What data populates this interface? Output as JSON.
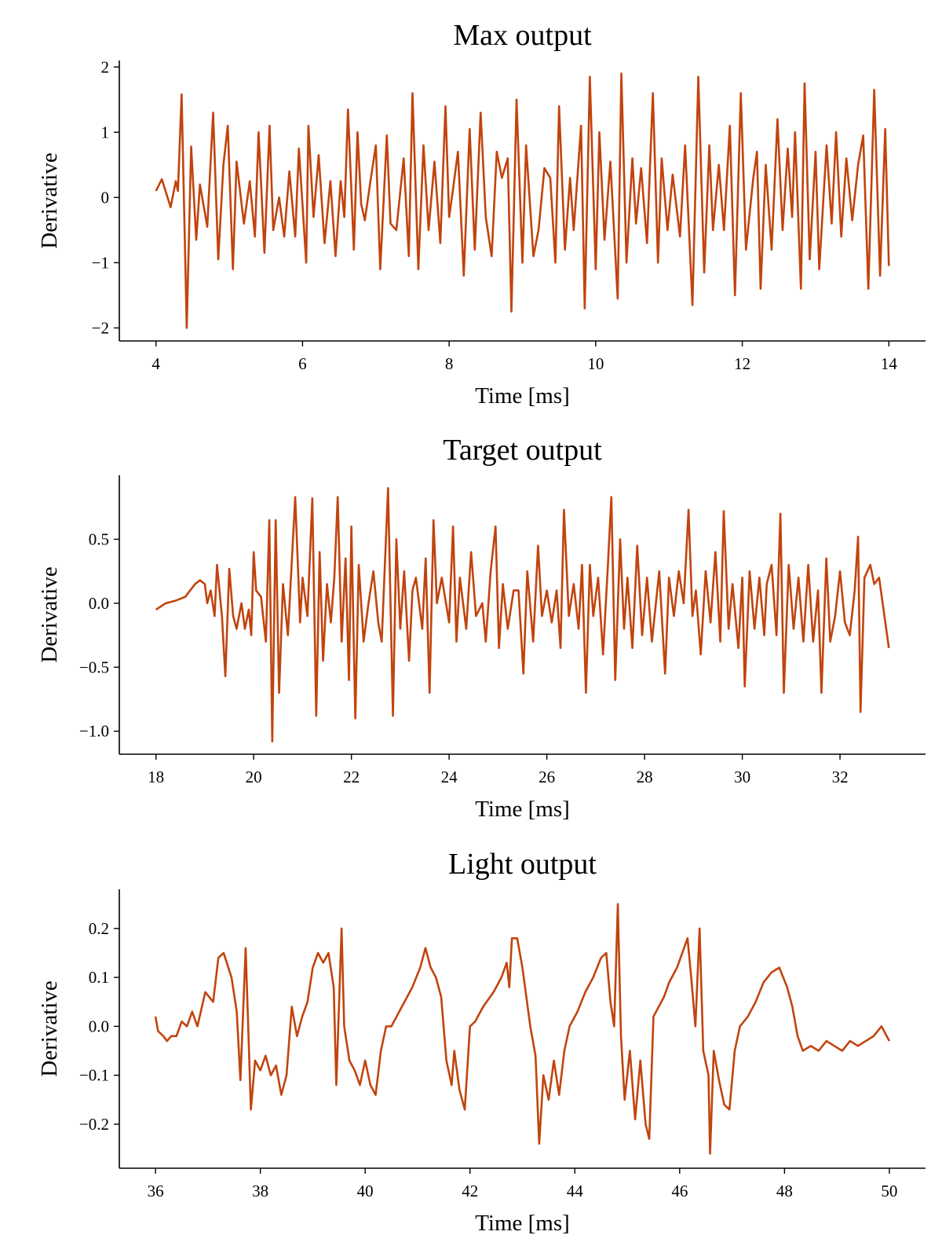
{
  "chart_data": [
    {
      "type": "line",
      "title": "Max output",
      "x_label": "Time [ms]",
      "y_label": "Derivative",
      "color": "#c1440e",
      "xlim": [
        3.5,
        14.5
      ],
      "ylim": [
        -2.2,
        2.1
      ],
      "xticks": [
        4,
        6,
        8,
        10,
        12,
        14
      ],
      "yticks": [
        {
          "value": -2,
          "label": "−2"
        },
        {
          "value": -1,
          "label": "−1"
        },
        0,
        1,
        2
      ],
      "x": [
        4.0,
        4.08,
        4.2,
        4.27,
        4.3,
        4.35,
        4.42,
        4.48,
        4.55,
        4.6,
        4.7,
        4.78,
        4.85,
        4.92,
        4.98,
        5.05,
        5.1,
        5.2,
        5.28,
        5.35,
        5.4,
        5.48,
        5.55,
        5.6,
        5.68,
        5.75,
        5.82,
        5.9,
        5.95,
        6.05,
        6.08,
        6.15,
        6.22,
        6.3,
        6.38,
        6.45,
        6.52,
        6.57,
        6.62,
        6.7,
        6.75,
        6.8,
        6.85,
        6.92,
        7.0,
        7.06,
        7.15,
        7.2,
        7.28,
        7.38,
        7.45,
        7.5,
        7.58,
        7.65,
        7.72,
        7.8,
        7.88,
        7.95,
        8.0,
        8.05,
        8.12,
        8.2,
        8.28,
        8.35,
        8.43,
        8.5,
        8.58,
        8.65,
        8.72,
        8.8,
        8.85,
        8.92,
        9.0,
        9.05,
        9.15,
        9.22,
        9.3,
        9.38,
        9.45,
        9.5,
        9.58,
        9.65,
        9.7,
        9.8,
        9.85,
        9.92,
        10.0,
        10.05,
        10.12,
        10.2,
        10.3,
        10.35,
        10.42,
        10.5,
        10.55,
        10.62,
        10.7,
        10.78,
        10.85,
        10.9,
        10.98,
        11.05,
        11.15,
        11.22,
        11.32,
        11.4,
        11.48,
        11.55,
        11.6,
        11.68,
        11.75,
        11.83,
        11.9,
        11.98,
        12.05,
        12.15,
        12.2,
        12.25,
        12.32,
        12.4,
        12.48,
        12.55,
        12.62,
        12.68,
        12.72,
        12.8,
        12.85,
        12.92,
        13.0,
        13.05,
        13.15,
        13.22,
        13.28,
        13.35,
        13.42,
        13.5,
        13.58,
        13.65,
        13.72,
        13.8,
        13.88,
        13.95,
        14.0
      ],
      "values": [
        0.1,
        0.28,
        -0.15,
        0.25,
        0.1,
        1.58,
        -2.0,
        0.78,
        -0.65,
        0.2,
        -0.45,
        1.3,
        -0.95,
        0.5,
        1.1,
        -1.1,
        0.55,
        -0.4,
        0.25,
        -0.6,
        1.0,
        -0.85,
        1.1,
        -0.5,
        0.0,
        -0.6,
        0.4,
        -0.6,
        0.75,
        -1.0,
        1.1,
        -0.3,
        0.65,
        -0.7,
        0.25,
        -0.9,
        0.25,
        -0.3,
        1.35,
        -0.8,
        1.0,
        -0.1,
        -0.35,
        0.2,
        0.8,
        -1.1,
        0.95,
        -0.4,
        -0.5,
        0.6,
        -0.9,
        1.6,
        -1.1,
        0.8,
        -0.5,
        0.55,
        -0.7,
        1.4,
        -0.3,
        0.1,
        0.7,
        -1.2,
        1.05,
        -0.8,
        1.3,
        -0.3,
        -0.9,
        0.7,
        0.3,
        0.6,
        -1.75,
        1.5,
        -1.0,
        0.8,
        -0.9,
        -0.5,
        0.45,
        0.3,
        -1.0,
        1.4,
        -0.8,
        0.3,
        -0.5,
        1.1,
        -1.7,
        1.85,
        -1.1,
        1.0,
        -0.65,
        0.55,
        -1.55,
        1.9,
        -1.0,
        0.6,
        -0.4,
        0.45,
        -0.7,
        1.6,
        -1.0,
        0.6,
        -0.5,
        0.35,
        -0.6,
        0.8,
        -1.65,
        1.85,
        -1.15,
        0.8,
        -0.5,
        0.5,
        -0.5,
        1.1,
        -1.5,
        1.6,
        -0.8,
        0.3,
        0.7,
        -1.4,
        0.5,
        -0.8,
        1.2,
        -0.5,
        0.75,
        -0.3,
        1.0,
        -1.4,
        1.75,
        -0.95,
        0.7,
        -1.1,
        0.8,
        -0.4,
        1.0,
        -0.6,
        0.6,
        -0.35,
        0.5,
        0.95,
        -1.4,
        1.65,
        -1.2,
        1.05,
        -1.05
      ]
    },
    {
      "type": "line",
      "title": "Target output",
      "x_label": "Time [ms]",
      "y_label": "Derivative",
      "color": "#c1440e",
      "xlim": [
        17.25,
        33.75
      ],
      "ylim": [
        -1.18,
        1.0
      ],
      "xticks": [
        18,
        20,
        22,
        24,
        26,
        28,
        30,
        32
      ],
      "yticks": [
        {
          "value": -1.0,
          "label": "−1.0"
        },
        {
          "value": -0.5,
          "label": "−0.5"
        },
        {
          "value": 0.0,
          "label": "0.0"
        },
        0.5
      ],
      "x": [
        18.0,
        18.2,
        18.4,
        18.6,
        18.8,
        18.9,
        19.0,
        19.05,
        19.12,
        19.2,
        19.25,
        19.35,
        19.42,
        19.5,
        19.58,
        19.65,
        19.75,
        19.82,
        19.9,
        19.95,
        20.0,
        20.05,
        20.15,
        20.25,
        20.32,
        20.38,
        20.45,
        20.52,
        20.6,
        20.7,
        20.85,
        20.95,
        21.0,
        21.1,
        21.2,
        21.28,
        21.35,
        21.42,
        21.5,
        21.58,
        21.65,
        21.72,
        21.8,
        21.88,
        21.95,
        22.0,
        22.08,
        22.15,
        22.25,
        22.35,
        22.45,
        22.55,
        22.62,
        22.75,
        22.85,
        22.92,
        23.0,
        23.08,
        23.18,
        23.25,
        23.32,
        23.45,
        23.52,
        23.6,
        23.68,
        23.75,
        23.85,
        24.0,
        24.08,
        24.15,
        24.22,
        24.35,
        24.45,
        24.55,
        24.68,
        24.75,
        24.85,
        24.95,
        25.02,
        25.1,
        25.2,
        25.32,
        25.42,
        25.52,
        25.6,
        25.72,
        25.82,
        25.9,
        26.0,
        26.1,
        26.2,
        26.28,
        26.35,
        26.45,
        26.55,
        26.65,
        26.72,
        26.8,
        26.88,
        26.95,
        27.05,
        27.15,
        27.25,
        27.32,
        27.4,
        27.5,
        27.58,
        27.65,
        27.75,
        27.85,
        27.95,
        28.05,
        28.15,
        28.3,
        28.42,
        28.5,
        28.6,
        28.7,
        28.8,
        28.9,
        28.98,
        29.05,
        29.15,
        29.25,
        29.35,
        29.45,
        29.55,
        29.62,
        29.72,
        29.8,
        29.92,
        30.0,
        30.05,
        30.15,
        30.25,
        30.35,
        30.45,
        30.5,
        30.6,
        30.7,
        30.78,
        30.85,
        30.95,
        31.05,
        31.15,
        31.25,
        31.35,
        31.45,
        31.55,
        31.62,
        31.72,
        31.8,
        31.9,
        32.0,
        32.1,
        32.2,
        32.3,
        32.37,
        32.42,
        32.5,
        32.62,
        32.7,
        32.8,
        33.0
      ],
      "values": [
        -0.05,
        0.0,
        0.02,
        0.05,
        0.15,
        0.18,
        0.15,
        0.0,
        0.1,
        -0.1,
        0.3,
        -0.1,
        -0.57,
        0.27,
        -0.1,
        -0.2,
        0.0,
        -0.2,
        -0.05,
        -0.25,
        0.4,
        0.1,
        0.05,
        -0.3,
        0.65,
        -1.08,
        0.65,
        -0.7,
        0.15,
        -0.25,
        0.83,
        -0.15,
        0.2,
        -0.1,
        0.82,
        -0.88,
        0.4,
        -0.45,
        0.15,
        -0.15,
        0.2,
        0.83,
        -0.3,
        0.35,
        -0.6,
        0.6,
        -0.9,
        0.3,
        -0.3,
        0.0,
        0.25,
        -0.15,
        -0.3,
        0.9,
        -0.88,
        0.5,
        -0.2,
        0.25,
        -0.45,
        0.1,
        0.2,
        -0.2,
        0.35,
        -0.7,
        0.65,
        0.0,
        0.2,
        -0.15,
        0.6,
        -0.3,
        0.2,
        -0.2,
        0.4,
        -0.1,
        0.0,
        -0.3,
        0.25,
        0.6,
        -0.35,
        0.15,
        -0.2,
        0.1,
        0.1,
        -0.55,
        0.25,
        -0.3,
        0.45,
        -0.1,
        0.1,
        -0.15,
        0.1,
        -0.35,
        0.73,
        -0.1,
        0.15,
        -0.2,
        0.3,
        -0.7,
        0.3,
        -0.1,
        0.2,
        -0.4,
        0.3,
        0.83,
        -0.6,
        0.5,
        -0.2,
        0.2,
        -0.35,
        0.45,
        -0.25,
        0.2,
        -0.3,
        0.25,
        -0.55,
        0.2,
        -0.1,
        0.25,
        0.0,
        0.73,
        -0.1,
        0.1,
        -0.4,
        0.25,
        -0.15,
        0.4,
        -0.3,
        0.72,
        -0.2,
        0.15,
        -0.35,
        0.2,
        -0.65,
        0.25,
        -0.2,
        0.2,
        -0.25,
        0.15,
        0.3,
        -0.25,
        0.7,
        -0.7,
        0.3,
        -0.2,
        0.2,
        -0.3,
        0.3,
        -0.3,
        0.1,
        -0.7,
        0.35,
        -0.3,
        -0.1,
        0.25,
        -0.15,
        -0.25,
        0.1,
        0.52,
        -0.85,
        0.2,
        0.3,
        0.15,
        0.2,
        -0.35
      ]
    },
    {
      "type": "line",
      "title": "Light output",
      "x_label": "Time [ms]",
      "y_label": "Derivative",
      "color": "#c1440e",
      "xlim": [
        35.31,
        50.69
      ],
      "ylim": [
        -0.29,
        0.28
      ],
      "xticks": [
        36,
        38,
        40,
        42,
        44,
        46,
        48,
        50
      ],
      "yticks": [
        {
          "value": -0.2,
          "label": "−0.2"
        },
        {
          "value": -0.1,
          "label": "−0.1"
        },
        {
          "value": 0.0,
          "label": "0.0"
        },
        0.1,
        0.2
      ],
      "x": [
        36.0,
        36.05,
        36.15,
        36.22,
        36.3,
        36.4,
        36.5,
        36.6,
        36.7,
        36.8,
        36.95,
        37.1,
        37.2,
        37.3,
        37.45,
        37.55,
        37.62,
        37.72,
        37.82,
        37.9,
        38.0,
        38.1,
        38.2,
        38.3,
        38.4,
        38.5,
        38.6,
        38.7,
        38.8,
        38.9,
        39.0,
        39.1,
        39.2,
        39.3,
        39.4,
        39.45,
        39.55,
        39.6,
        39.7,
        39.8,
        39.9,
        40.0,
        40.1,
        40.2,
        40.3,
        40.4,
        40.5,
        40.6,
        40.75,
        40.9,
        41.05,
        41.15,
        41.25,
        41.35,
        41.45,
        41.55,
        41.65,
        41.7,
        41.8,
        41.9,
        42.0,
        42.1,
        42.25,
        42.45,
        42.6,
        42.7,
        42.75,
        42.8,
        42.9,
        43.0,
        43.15,
        43.25,
        43.32,
        43.4,
        43.5,
        43.6,
        43.7,
        43.8,
        43.9,
        44.05,
        44.2,
        44.35,
        44.5,
        44.6,
        44.68,
        44.75,
        44.82,
        44.88,
        44.95,
        45.05,
        45.15,
        45.25,
        45.35,
        45.42,
        45.5,
        45.6,
        45.7,
        45.8,
        45.95,
        46.05,
        46.15,
        46.22,
        46.3,
        46.38,
        46.45,
        46.55,
        46.58,
        46.65,
        46.75,
        46.85,
        46.95,
        47.05,
        47.15,
        47.3,
        47.45,
        47.6,
        47.75,
        47.9,
        48.05,
        48.15,
        48.25,
        48.35,
        48.5,
        48.65,
        48.8,
        48.95,
        49.1,
        49.25,
        49.4,
        49.55,
        49.7,
        49.85,
        50.0
      ],
      "values": [
        0.02,
        -0.01,
        -0.02,
        -0.03,
        -0.02,
        -0.02,
        0.01,
        0.0,
        0.03,
        0.0,
        0.07,
        0.05,
        0.14,
        0.15,
        0.1,
        0.03,
        -0.11,
        0.16,
        -0.17,
        -0.07,
        -0.09,
        -0.06,
        -0.1,
        -0.08,
        -0.14,
        -0.1,
        0.04,
        -0.02,
        0.02,
        0.05,
        0.12,
        0.15,
        0.13,
        0.15,
        0.08,
        -0.12,
        0.2,
        0.0,
        -0.07,
        -0.09,
        -0.12,
        -0.07,
        -0.12,
        -0.14,
        -0.05,
        0.0,
        0.0,
        0.02,
        0.05,
        0.08,
        0.12,
        0.16,
        0.12,
        0.1,
        0.06,
        -0.07,
        -0.12,
        -0.05,
        -0.13,
        -0.17,
        0.0,
        0.01,
        0.04,
        0.07,
        0.1,
        0.13,
        0.08,
        0.18,
        0.18,
        0.12,
        0.0,
        -0.06,
        -0.24,
        -0.1,
        -0.15,
        -0.07,
        -0.14,
        -0.05,
        0.0,
        0.03,
        0.07,
        0.1,
        0.14,
        0.15,
        0.05,
        0.0,
        0.25,
        -0.02,
        -0.15,
        -0.05,
        -0.19,
        -0.07,
        -0.2,
        -0.23,
        0.02,
        0.04,
        0.06,
        0.09,
        0.12,
        0.15,
        0.18,
        0.1,
        0.0,
        0.2,
        -0.05,
        -0.1,
        -0.26,
        -0.05,
        -0.11,
        -0.16,
        -0.17,
        -0.05,
        0.0,
        0.02,
        0.05,
        0.09,
        0.11,
        0.12,
        0.08,
        0.04,
        -0.02,
        -0.05,
        -0.04,
        -0.05,
        -0.03,
        -0.04,
        -0.05,
        -0.03,
        -0.04,
        -0.03,
        -0.02,
        0.0,
        -0.03
      ]
    }
  ]
}
